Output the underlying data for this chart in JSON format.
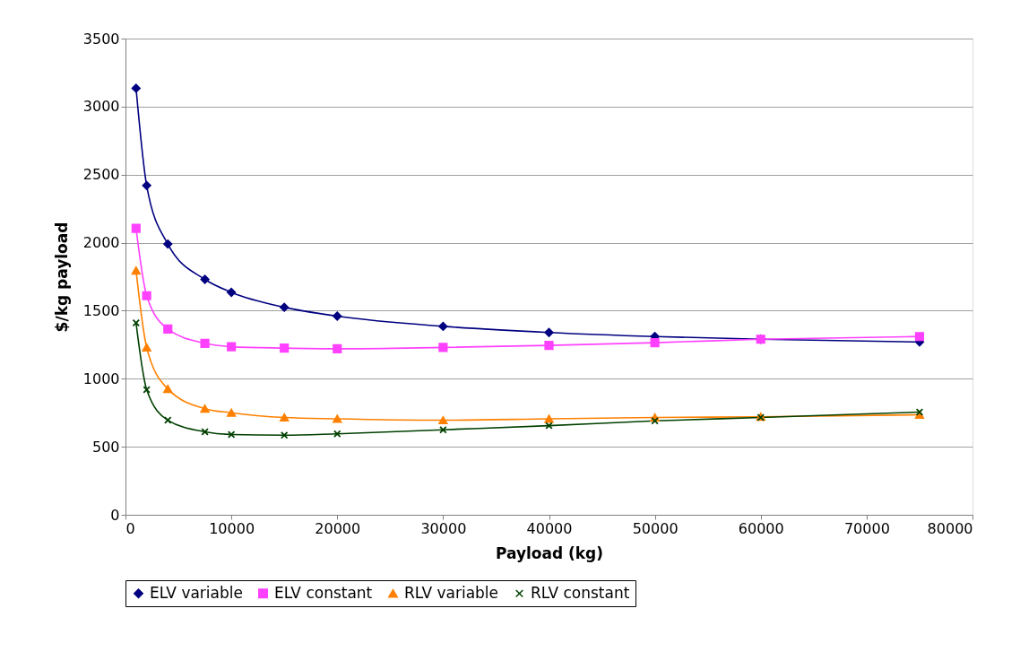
{
  "chart_data": {
    "type": "line",
    "xlabel": "Payload (kg)",
    "ylabel": "$/kg payload",
    "x": [
      1000,
      2000,
      4000,
      7500,
      10000,
      15000,
      20000,
      30000,
      40000,
      50000,
      60000,
      75000
    ],
    "series": [
      {
        "name": "ELV variable",
        "color": "#000080",
        "marker": "diamond",
        "values": [
          3135,
          2420,
          1990,
          1730,
          1635,
          1525,
          1460,
          1385,
          1340,
          1310,
          1290,
          1270
        ]
      },
      {
        "name": "ELV constant",
        "color": "#ff40ff",
        "marker": "square",
        "values": [
          2105,
          1610,
          1365,
          1260,
          1235,
          1225,
          1220,
          1230,
          1245,
          1265,
          1290,
          1310
        ]
      },
      {
        "name": "RLV variable",
        "color": "#ff8000",
        "marker": "triangle",
        "values": [
          1795,
          1230,
          925,
          780,
          750,
          715,
          705,
          695,
          705,
          715,
          720,
          735
        ]
      },
      {
        "name": "RLV constant",
        "color": "#004000",
        "marker": "cross",
        "values": [
          1410,
          920,
          695,
          610,
          590,
          585,
          595,
          625,
          655,
          690,
          715,
          755
        ]
      }
    ],
    "xlim": [
      0,
      80000
    ],
    "xticks": [
      0,
      10000,
      20000,
      30000,
      40000,
      50000,
      60000,
      70000,
      80000
    ],
    "ylim": [
      0,
      3500
    ],
    "yticks": [
      0,
      500,
      1000,
      1500,
      2000,
      2500,
      3000,
      3500
    ],
    "grid": "y",
    "legend": "bottom",
    "line_style": "solid"
  }
}
